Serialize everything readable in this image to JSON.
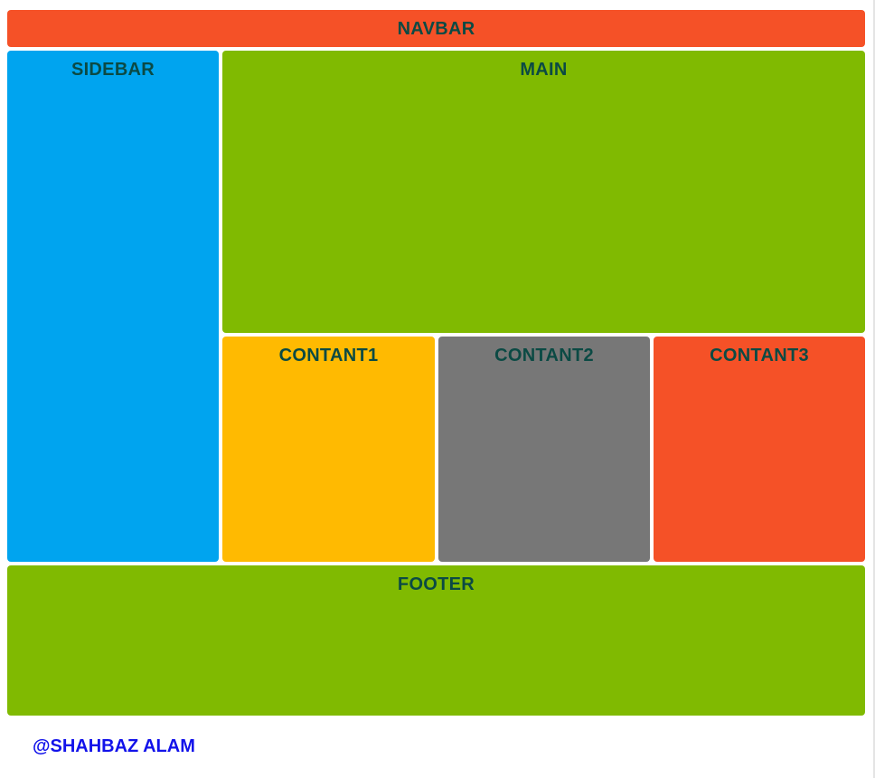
{
  "layout": {
    "navbar": {
      "label": "NAVBAR",
      "color": "#f55127"
    },
    "sidebar": {
      "label": "SIDEBAR",
      "color": "#00a4ef"
    },
    "main": {
      "label": "MAIN",
      "color": "#80ba01"
    },
    "contents": [
      {
        "label": "CONTANT1",
        "color": "#ffba01"
      },
      {
        "label": "CONTANT2",
        "color": "#777777"
      },
      {
        "label": "CONTANT3",
        "color": "#f55127"
      }
    ],
    "footer": {
      "label": "FOOTER",
      "color": "#80ba01"
    }
  },
  "credit": {
    "text": "@SHAHBAZ ALAM",
    "color": "#1212ea"
  },
  "label_color": "#0b4a44"
}
